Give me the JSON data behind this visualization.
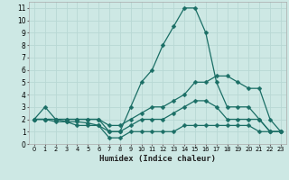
{
  "xlabel": "Humidex (Indice chaleur)",
  "background_color": "#cde8e4",
  "grid_color": "#b8d8d4",
  "line_color": "#1a6e65",
  "xlim": [
    -0.5,
    23.5
  ],
  "ylim": [
    0,
    11.5
  ],
  "xticks": [
    0,
    1,
    2,
    3,
    4,
    5,
    6,
    7,
    8,
    9,
    10,
    11,
    12,
    13,
    14,
    15,
    16,
    17,
    18,
    19,
    20,
    21,
    22,
    23
  ],
  "yticks": [
    0,
    1,
    2,
    3,
    4,
    5,
    6,
    7,
    8,
    9,
    10,
    11
  ],
  "line1_x": [
    0,
    1,
    2,
    3,
    4,
    5,
    6,
    7,
    8,
    9,
    10,
    11,
    12,
    13,
    14,
    15,
    16,
    17,
    18,
    19,
    20,
    21,
    22,
    23
  ],
  "line1_y": [
    2,
    3,
    2,
    2,
    2,
    2,
    2,
    1,
    1,
    3,
    5,
    6,
    8,
    9.5,
    11,
    11,
    9,
    5,
    3,
    3,
    3,
    2,
    1,
    1
  ],
  "line2_x": [
    0,
    1,
    2,
    3,
    4,
    5,
    6,
    7,
    8,
    9,
    10,
    11,
    12,
    13,
    14,
    15,
    16,
    17,
    18,
    19,
    20,
    21,
    22,
    23
  ],
  "line2_y": [
    2,
    2,
    2,
    2,
    2,
    2,
    2,
    1.5,
    1.5,
    2,
    2.5,
    3,
    3,
    3.5,
    4,
    5,
    5,
    5.5,
    5.5,
    5,
    4.5,
    4.5,
    2,
    1
  ],
  "line3_x": [
    0,
    1,
    2,
    3,
    4,
    5,
    6,
    7,
    8,
    9,
    10,
    11,
    12,
    13,
    14,
    15,
    16,
    17,
    18,
    19,
    20,
    21,
    22,
    23
  ],
  "line3_y": [
    2,
    2,
    2,
    1.8,
    1.8,
    1.7,
    1.5,
    1,
    1,
    1.5,
    2,
    2,
    2,
    2.5,
    3,
    3.5,
    3.5,
    3,
    2,
    2,
    2,
    2,
    1,
    1
  ],
  "line4_x": [
    0,
    1,
    2,
    3,
    4,
    5,
    6,
    7,
    8,
    9,
    10,
    11,
    12,
    13,
    14,
    15,
    16,
    17,
    18,
    19,
    20,
    21,
    22,
    23
  ],
  "line4_y": [
    2,
    2,
    1.8,
    1.8,
    1.5,
    1.5,
    1.5,
    0.5,
    0.5,
    1,
    1,
    1,
    1,
    1,
    1.5,
    1.5,
    1.5,
    1.5,
    1.5,
    1.5,
    1.5,
    1,
    1,
    1
  ],
  "marker_size": 2.5,
  "line_width": 0.9
}
